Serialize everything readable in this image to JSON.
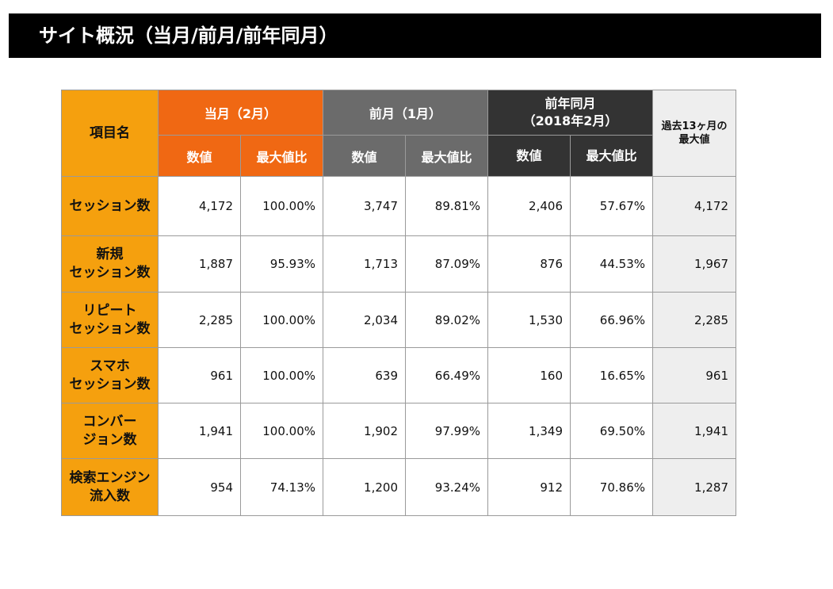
{
  "header": {
    "title": "サイト概況（当月/前月/前年同月）"
  },
  "table": {
    "item_header": "項目名",
    "groups": [
      {
        "label": "当月（2月）",
        "sub": [
          "数値",
          "最大値比"
        ]
      },
      {
        "label": "前月（1月）",
        "sub": [
          "数値",
          "最大値比"
        ]
      },
      {
        "label": "前年同月\n（2018年2月）",
        "sub": [
          "数値",
          "最大値比"
        ]
      }
    ],
    "max_header": "過去13ヶ月の\n最大値",
    "rows": [
      {
        "label": "セッション数",
        "values": [
          "4,172",
          "100.00%",
          "3,747",
          "89.81%",
          "2,406",
          "57.67%"
        ],
        "max": "4,172"
      },
      {
        "label": "新規\nセッション数",
        "values": [
          "1,887",
          "95.93%",
          "1,713",
          "87.09%",
          "876",
          "44.53%"
        ],
        "max": "1,967"
      },
      {
        "label": "リピート\nセッション数",
        "values": [
          "2,285",
          "100.00%",
          "2,034",
          "89.02%",
          "1,530",
          "66.96%"
        ],
        "max": "2,285"
      },
      {
        "label": "スマホ\nセッション数",
        "values": [
          "961",
          "100.00%",
          "639",
          "66.49%",
          "160",
          "16.65%"
        ],
        "max": "961"
      },
      {
        "label": "コンバー\nジョン数",
        "values": [
          "1,941",
          "100.00%",
          "1,902",
          "97.99%",
          "1,349",
          "69.50%"
        ],
        "max": "1,941"
      },
      {
        "label": "検索エンジン\n流入数",
        "values": [
          "954",
          "74.13%",
          "1,200",
          "93.24%",
          "912",
          "70.86%"
        ],
        "max": "1,287"
      }
    ]
  }
}
